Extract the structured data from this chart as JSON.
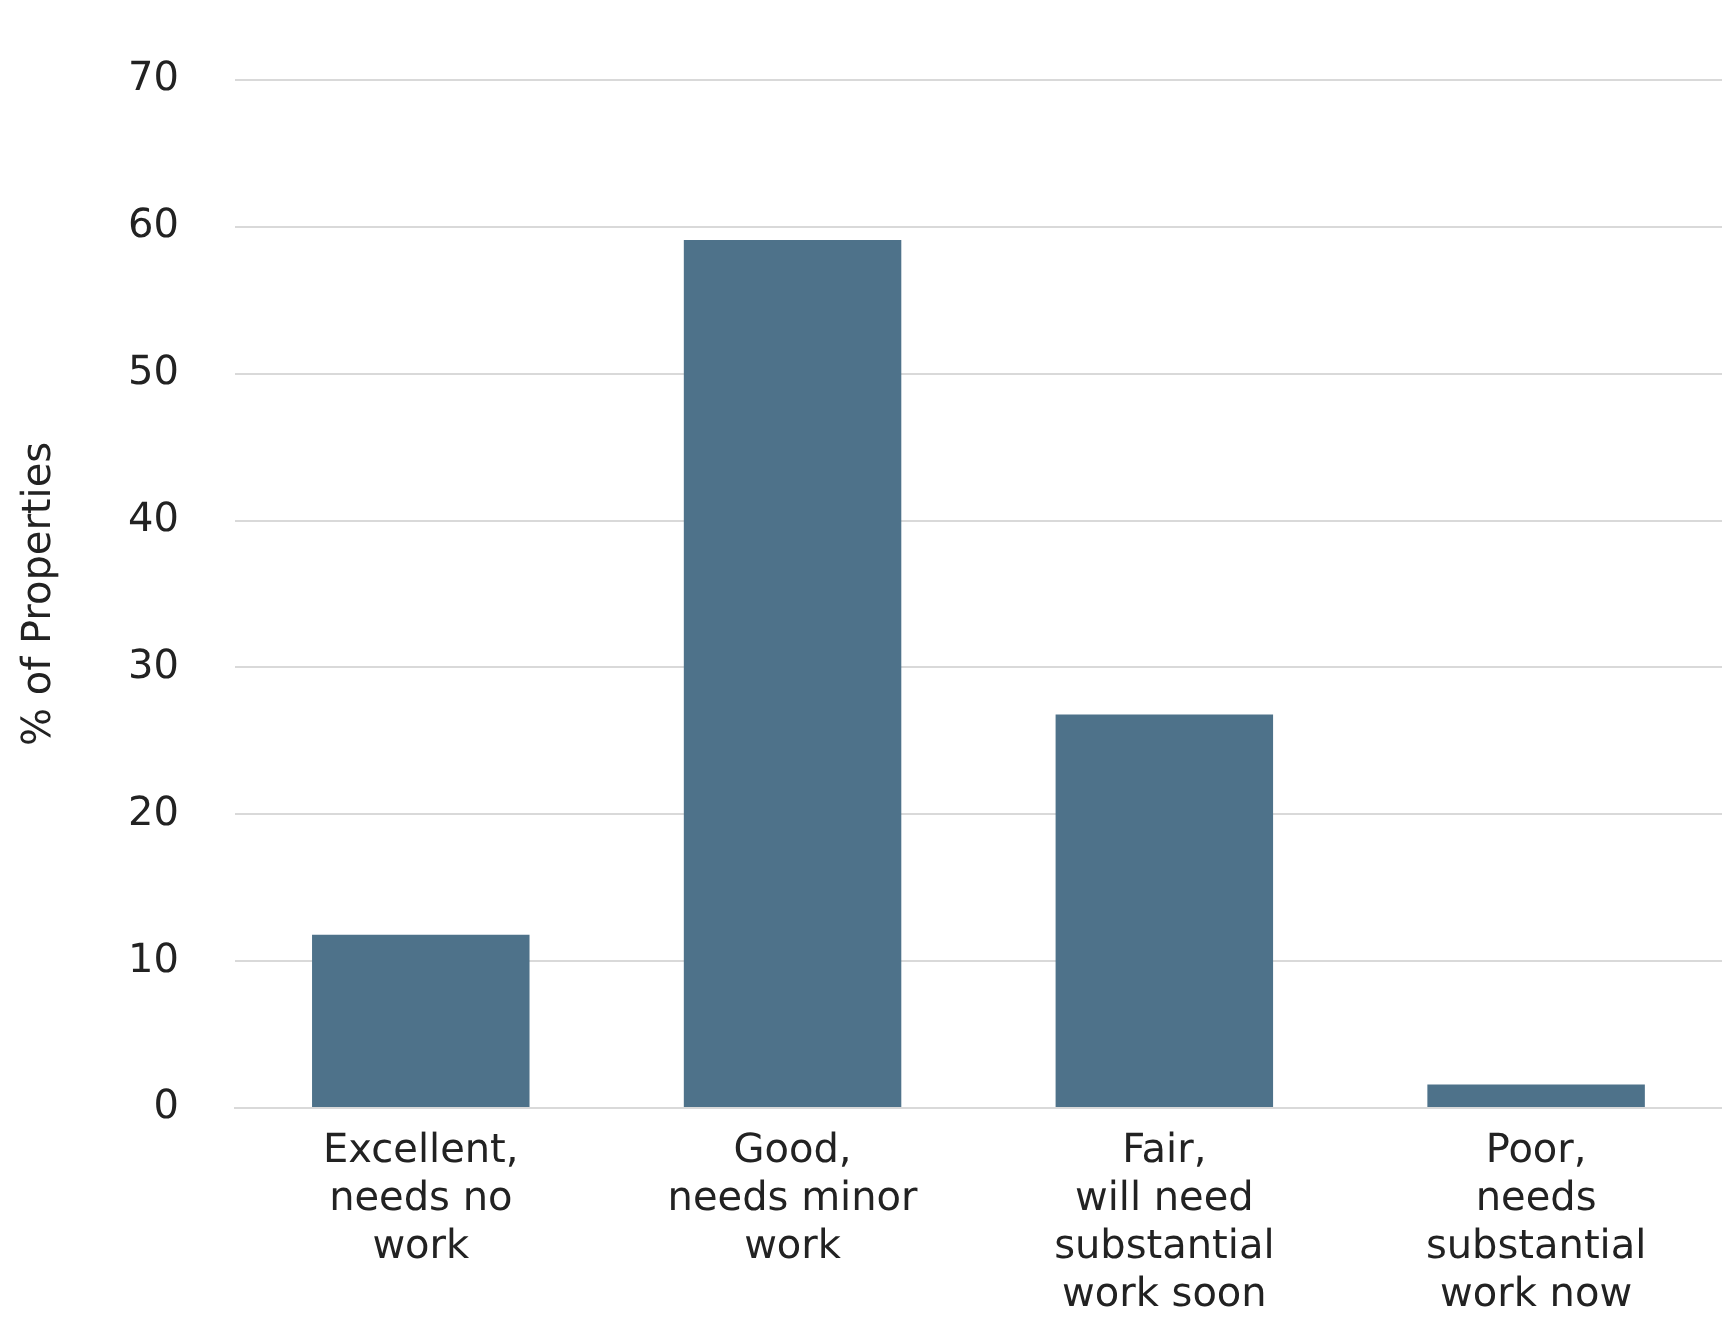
{
  "chart_data": {
    "type": "bar",
    "ylabel": "% of Properties",
    "categories": [
      "Excellent,\nneeds no\nwork",
      "Good,\nneeds minor\nwork",
      "Fair,\nwill need\nsubstantial\nwork soon",
      "Poor,\nneeds\nsubstantial\nwork now"
    ],
    "values": [
      11.8,
      59.1,
      26.8,
      1.6
    ],
    "color": "#4e728a",
    "ylim": [
      0,
      70
    ],
    "yticks": [
      0,
      10,
      20,
      30,
      40,
      50,
      60,
      70
    ],
    "grid": "y",
    "legend": false
  }
}
